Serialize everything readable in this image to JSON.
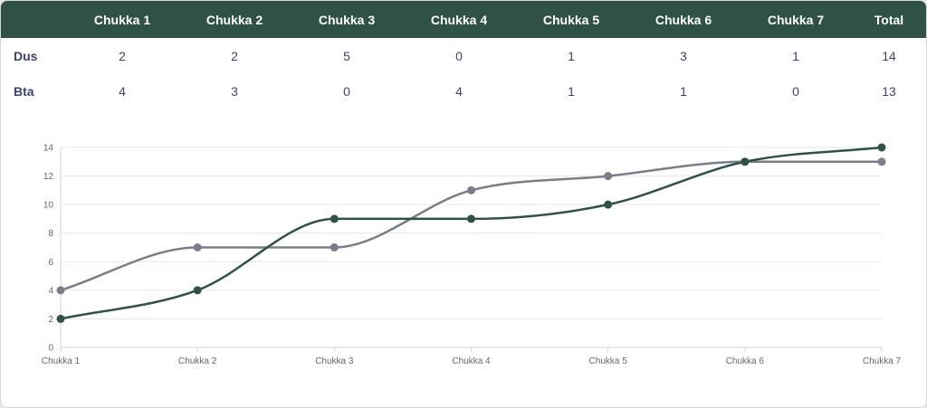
{
  "table": {
    "columns": [
      "",
      "Chukka 1",
      "Chukka 2",
      "Chukka 3",
      "Chukka 4",
      "Chukka 5",
      "Chukka 6",
      "Chukka 7",
      "Total"
    ],
    "rows": [
      {
        "team": "Dus",
        "cells": [
          "2",
          "2",
          "5",
          "0",
          "1",
          "3",
          "1",
          "14"
        ]
      },
      {
        "team": "Bta",
        "cells": [
          "4",
          "3",
          "0",
          "4",
          "1",
          "1",
          "0",
          "13"
        ]
      }
    ]
  },
  "colors": {
    "header_bg": "#2f5244",
    "series_dus": "#2f5244",
    "series_bta": "#7a7d8a",
    "text": "#3b4470",
    "grid": "#e6e6e6"
  },
  "chart_data": {
    "type": "line",
    "categories": [
      "Chukka 1",
      "Chukka 2",
      "Chukka 3",
      "Chukka 4",
      "Chukka 5",
      "Chukka 6",
      "Chukka 7"
    ],
    "series": [
      {
        "values": [
          2,
          4,
          9,
          9,
          10,
          13,
          14
        ],
        "color": "#2f5244"
      },
      {
        "values": [
          4,
          7,
          7,
          11,
          12,
          13,
          13
        ],
        "color": "#7a7d8a"
      }
    ],
    "yticks": [
      0,
      2,
      4,
      6,
      8,
      10,
      12,
      14
    ],
    "ylim": [
      0,
      14
    ],
    "grid": true,
    "legend": "none",
    "title": "",
    "xlabel": "",
    "ylabel": ""
  }
}
